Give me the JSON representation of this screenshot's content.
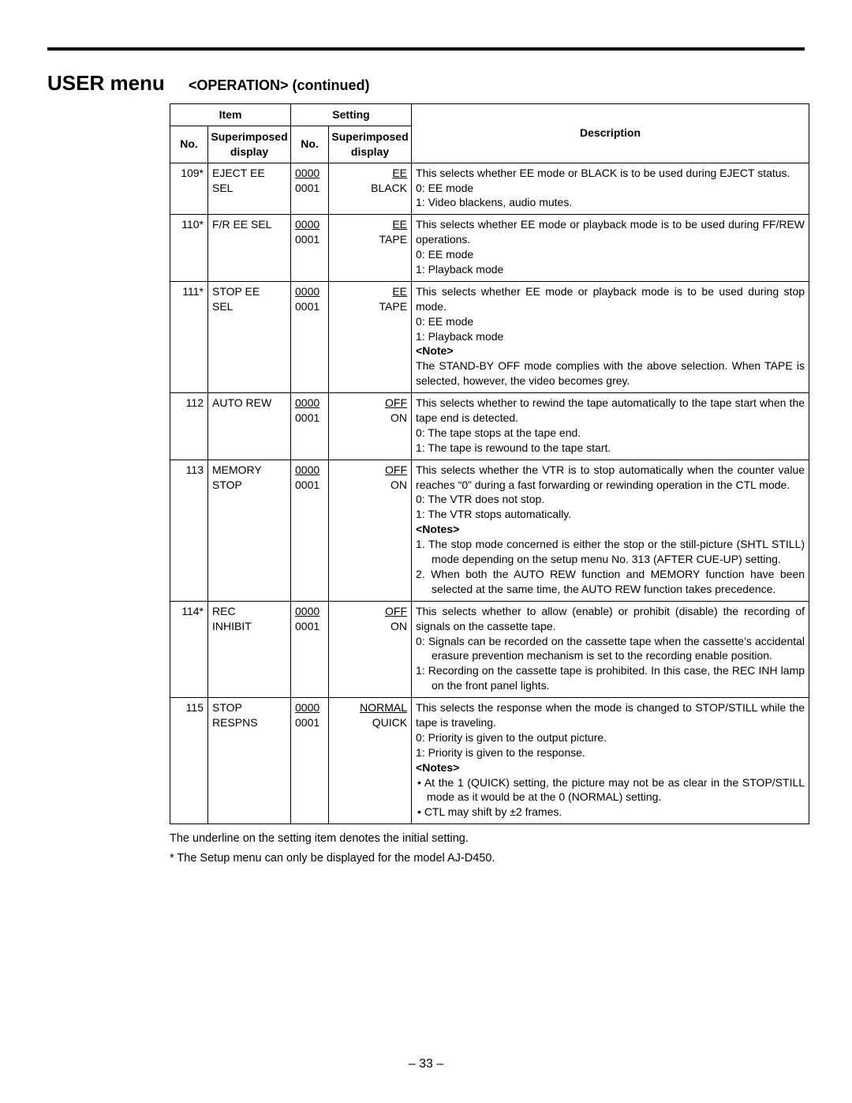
{
  "page_title": "USER menu",
  "section_title": "<OPERATION> (continued)",
  "headers": {
    "item": "Item",
    "setting": "Setting",
    "description": "Description",
    "no": "No.",
    "superimposed_display": "Superimposed display"
  },
  "rows": [
    {
      "no": "109*",
      "item_lines": [
        "EJECT EE",
        "SEL"
      ],
      "setting_nos": [
        {
          "text": "0000",
          "underline": true
        },
        {
          "text": "0001",
          "underline": false
        }
      ],
      "setting_vals": [
        {
          "text": "EE",
          "underline": true
        },
        {
          "text": "BLACK",
          "underline": false
        }
      ],
      "desc": [
        {
          "t": "This selects whether EE mode or BLACK is to be used during EJECT status."
        },
        {
          "t": "0:  EE mode",
          "cls": "hang"
        },
        {
          "t": "1:  Video blackens, audio mutes.",
          "cls": "hang"
        }
      ]
    },
    {
      "no": "110*",
      "item_lines": [
        "F/R EE SEL"
      ],
      "setting_nos": [
        {
          "text": "0000",
          "underline": true
        },
        {
          "text": "0001",
          "underline": false
        }
      ],
      "setting_vals": [
        {
          "text": "EE",
          "underline": true
        },
        {
          "text": "TAPE",
          "underline": false
        }
      ],
      "desc": [
        {
          "t": "This selects whether EE mode or playback mode is to be used during FF/REW operations."
        },
        {
          "t": "0:  EE mode",
          "cls": "hang"
        },
        {
          "t": "1:  Playback mode",
          "cls": "hang"
        }
      ]
    },
    {
      "no": "111*",
      "item_lines": [
        "STOP EE",
        "SEL"
      ],
      "setting_nos": [
        {
          "text": "0000",
          "underline": true
        },
        {
          "text": "0001",
          "underline": false
        }
      ],
      "setting_vals": [
        {
          "text": "EE",
          "underline": true
        },
        {
          "text": "TAPE",
          "underline": false
        }
      ],
      "desc": [
        {
          "t": "This selects whether EE mode or playback mode is to be used during stop mode."
        },
        {
          "t": "0:  EE mode",
          "cls": "hang"
        },
        {
          "t": "1:  Playback mode",
          "cls": "hang"
        },
        {
          "t": "<Note>",
          "cls": "bold"
        },
        {
          "t": "The STAND-BY OFF mode complies with the above selection. When TAPE is selected, however, the video becomes grey."
        }
      ]
    },
    {
      "no": "112",
      "item_lines": [
        "AUTO REW"
      ],
      "setting_nos": [
        {
          "text": "0000",
          "underline": true
        },
        {
          "text": "0001",
          "underline": false
        }
      ],
      "setting_vals": [
        {
          "text": "OFF",
          "underline": true
        },
        {
          "text": "ON",
          "underline": false
        }
      ],
      "desc": [
        {
          "t": "This selects whether to rewind the tape automatically to the tape start when the tape end is detected."
        },
        {
          "t": "0:  The tape stops at the tape end.",
          "cls": "hang"
        },
        {
          "t": "1:  The tape is rewound to the tape start.",
          "cls": "hang"
        }
      ]
    },
    {
      "no": "113",
      "item_lines": [
        "MEMORY",
        "STOP"
      ],
      "setting_nos": [
        {
          "text": "0000",
          "underline": true
        },
        {
          "text": "0001",
          "underline": false
        }
      ],
      "setting_vals": [
        {
          "text": "OFF",
          "underline": true
        },
        {
          "text": "ON",
          "underline": false
        }
      ],
      "desc": [
        {
          "t": "This selects whether the VTR is to stop automatically when the counter value reaches “0” during a fast forwarding or rewinding operation in the CTL mode."
        },
        {
          "t": "0:  The VTR does not stop.",
          "cls": "hang"
        },
        {
          "t": "1:  The VTR stops automatically.",
          "cls": "hang"
        },
        {
          "t": "<Notes>",
          "cls": "bold"
        },
        {
          "t": "1. The stop mode concerned is either the stop or the still-picture (SHTL STILL) mode depending on the setup menu No. 313 (AFTER CUE-UP) setting.",
          "cls": "hang2"
        },
        {
          "t": "2. When both the AUTO REW function and MEMORY function have been selected at the same time, the AUTO REW function takes precedence.",
          "cls": "hang2"
        }
      ]
    },
    {
      "no": "114*",
      "item_lines": [
        "REC",
        "INHIBIT"
      ],
      "setting_nos": [
        {
          "text": "0000",
          "underline": true
        },
        {
          "text": "0001",
          "underline": false
        }
      ],
      "setting_vals": [
        {
          "text": "OFF",
          "underline": true
        },
        {
          "text": "ON",
          "underline": false
        }
      ],
      "desc": [
        {
          "t": "This selects whether to allow (enable) or prohibit (disable) the recording of signals on the cassette tape."
        },
        {
          "t": "0:  Signals can be recorded on the cassette tape when the cassette’s accidental erasure prevention mechanism is set to the recording enable position.",
          "cls": "hang"
        },
        {
          "t": "1:  Recording on the cassette tape is prohibited. In this case, the REC INH lamp on the front panel lights.",
          "cls": "hang"
        }
      ]
    },
    {
      "no": "115",
      "item_lines": [
        "STOP",
        "RESPNS"
      ],
      "setting_nos": [
        {
          "text": "0000",
          "underline": true
        },
        {
          "text": "0001",
          "underline": false
        }
      ],
      "setting_vals": [
        {
          "text": "NORMAL",
          "underline": true
        },
        {
          "text": "QUICK",
          "underline": false
        }
      ],
      "desc": [
        {
          "t": "This selects the response when the mode is changed to STOP/STILL while the tape is traveling."
        },
        {
          "t": "0:  Priority is given to the output picture.",
          "cls": "hang"
        },
        {
          "t": "1:  Priority is given to the response.",
          "cls": "hang"
        },
        {
          "t": "<Notes>",
          "cls": "bold"
        },
        {
          "t": "• At the 1 (QUICK) setting, the picture may not be as clear in the STOP/STILL mode as it would be at the 0 (NORMAL) setting.",
          "cls": "bullet"
        },
        {
          "t": "• CTL may shift by ±2 frames.",
          "cls": "bullet"
        }
      ]
    }
  ],
  "footnotes": [
    "The underline on the setting item denotes the initial setting.",
    "* The Setup menu can only be displayed for the model AJ-D450."
  ],
  "page_number": "– 33 –"
}
